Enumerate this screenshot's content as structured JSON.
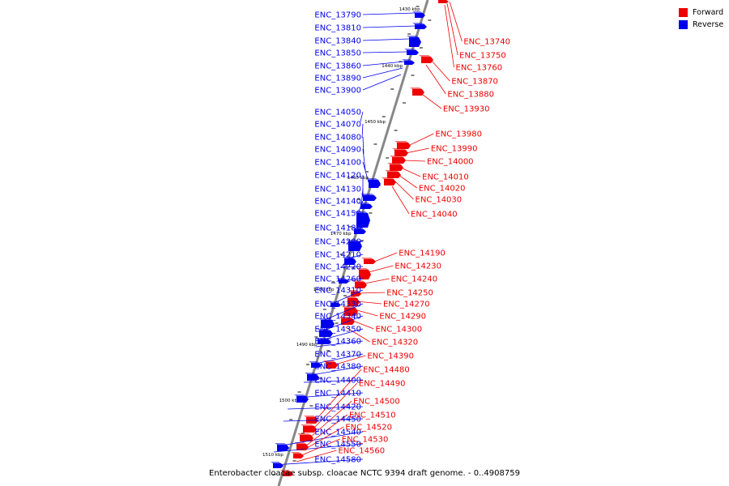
{
  "caption": "Enterobacter cloacae subsp. cloacae NCTC 9394 draft genome. - 0..4908759",
  "legend": [
    {
      "label": "Forward",
      "color": "#ee0000"
    },
    {
      "label": "Reverse",
      "color": "#0000ee"
    }
  ],
  "colors": {
    "forward": "#ee0000",
    "reverse": "#0000ee",
    "axis": "#888888",
    "tick": "#000000"
  },
  "scale": {
    "unit": "kbp",
    "labels": [
      "1430 kbp",
      "1440 kbp",
      "1450 kbp",
      "1460 kbp",
      "1470 kbp",
      "1480 kbp",
      "1490 kbp",
      "1500 kbp",
      "1510 kbp"
    ]
  },
  "reverse_genes": [
    "ENC_13790",
    "ENC_13810",
    "ENC_13840",
    "ENC_13850",
    "ENC_13860",
    "ENC_13890",
    "ENC_13900",
    "ENC_14050",
    "ENC_14070",
    "ENC_14080",
    "ENC_14090",
    "ENC_14100",
    "ENC_14120",
    "ENC_14130",
    "ENC_14140",
    "ENC_14150",
    "ENC_14180",
    "ENC_14200",
    "ENC_14210",
    "ENC_14220",
    "ENC_14260",
    "ENC_14310",
    "ENC_14330",
    "ENC_14340",
    "ENC_14350",
    "ENC_14360",
    "ENC_14370",
    "ENC_14380",
    "ENC_14400",
    "ENC_14410",
    "ENC_14420",
    "ENC_14450",
    "ENC_14540",
    "ENC_14550",
    "ENC_14580"
  ],
  "forward_genes": [
    "ENC_13740",
    "ENC_13750",
    "ENC_13760",
    "ENC_13870",
    "ENC_13880",
    "ENC_13930",
    "ENC_13980",
    "ENC_13990",
    "ENC_14000",
    "ENC_14010",
    "ENC_14020",
    "ENC_14030",
    "ENC_14040",
    "ENC_14190",
    "ENC_14230",
    "ENC_14240",
    "ENC_14250",
    "ENC_14270",
    "ENC_14290",
    "ENC_14300",
    "ENC_14320",
    "ENC_14390",
    "ENC_14480",
    "ENC_14490",
    "ENC_14500",
    "ENC_14510",
    "ENC_14520",
    "ENC_14530",
    "ENC_14560"
  ]
}
